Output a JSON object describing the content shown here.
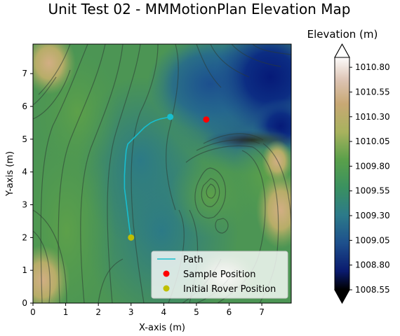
{
  "chart_data": {
    "type": "heatmap",
    "title": "Unit Test 02 - MMMotionPlan Elevation Map",
    "xlabel": "X-axis (m)",
    "ylabel": "Y-axis (m)",
    "xlim": [
      0,
      7.9
    ],
    "ylim": [
      0,
      7.9
    ],
    "xticks": [
      0,
      1,
      2,
      3,
      4,
      5,
      6,
      7
    ],
    "yticks": [
      0,
      1,
      2,
      3,
      4,
      5,
      6,
      7
    ],
    "grid": false,
    "legend_position": "lower-right",
    "colormap": "gist_earth",
    "colorbar": {
      "label": "Elevation (m)",
      "min": 1008.55,
      "max": 1010.9,
      "ticks": [
        1008.55,
        1008.8,
        1009.05,
        1009.3,
        1009.55,
        1009.8,
        1010.05,
        1010.3,
        1010.55,
        1010.8
      ],
      "tick_labels": [
        "1008.55",
        "1008.80",
        "1009.05",
        "1009.30",
        "1009.55",
        "1009.80",
        "1010.05",
        "1010.30",
        "1010.55",
        "1010.80"
      ],
      "extend": "both"
    },
    "series": [
      {
        "name": "Path",
        "kind": "line",
        "color": "#17becf",
        "x": [
          3.0,
          2.95,
          2.9,
          2.85,
          2.8,
          2.8,
          2.82,
          2.85,
          2.9,
          3.0,
          3.2,
          3.4,
          3.6,
          3.75,
          3.9,
          4.05,
          4.2
        ],
        "y": [
          2.0,
          2.3,
          2.7,
          3.1,
          3.5,
          3.9,
          4.3,
          4.65,
          4.85,
          4.95,
          5.15,
          5.35,
          5.5,
          5.57,
          5.62,
          5.65,
          5.68
        ]
      },
      {
        "name": "Sample Position",
        "kind": "point",
        "color": "#ff0000",
        "x": [
          5.3
        ],
        "y": [
          5.6
        ]
      },
      {
        "name": "Initial Rover Position",
        "kind": "point",
        "color": "#bfbf00",
        "x": [
          3.0
        ],
        "y": [
          2.0
        ]
      }
    ],
    "path_end_marker_color": "#17becf"
  }
}
